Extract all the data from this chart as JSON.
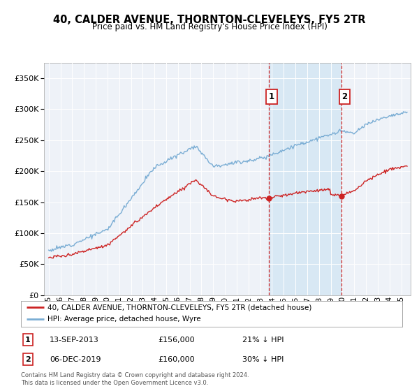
{
  "title": "40, CALDER AVENUE, THORNTON-CLEVELEYS, FY5 2TR",
  "subtitle": "Price paid vs. HM Land Registry's House Price Index (HPI)",
  "hpi_color": "#7aadd4",
  "price_color": "#cc2222",
  "sale1_date": "13-SEP-2013",
  "sale1_price": 156000,
  "sale1_label": "21% ↓ HPI",
  "sale2_date": "06-DEC-2019",
  "sale2_price": 160000,
  "sale2_label": "30% ↓ HPI",
  "legend_line1": "40, CALDER AVENUE, THORNTON-CLEVELEYS, FY5 2TR (detached house)",
  "legend_line2": "HPI: Average price, detached house, Wyre",
  "footer": "Contains HM Land Registry data © Crown copyright and database right 2024.\nThis data is licensed under the Open Government Licence v3.0.",
  "ylim": [
    0,
    375000
  ],
  "yticks": [
    0,
    50000,
    100000,
    150000,
    200000,
    250000,
    300000,
    350000
  ],
  "background_color": "#eef2f8",
  "shade_color": "#d8e8f4"
}
